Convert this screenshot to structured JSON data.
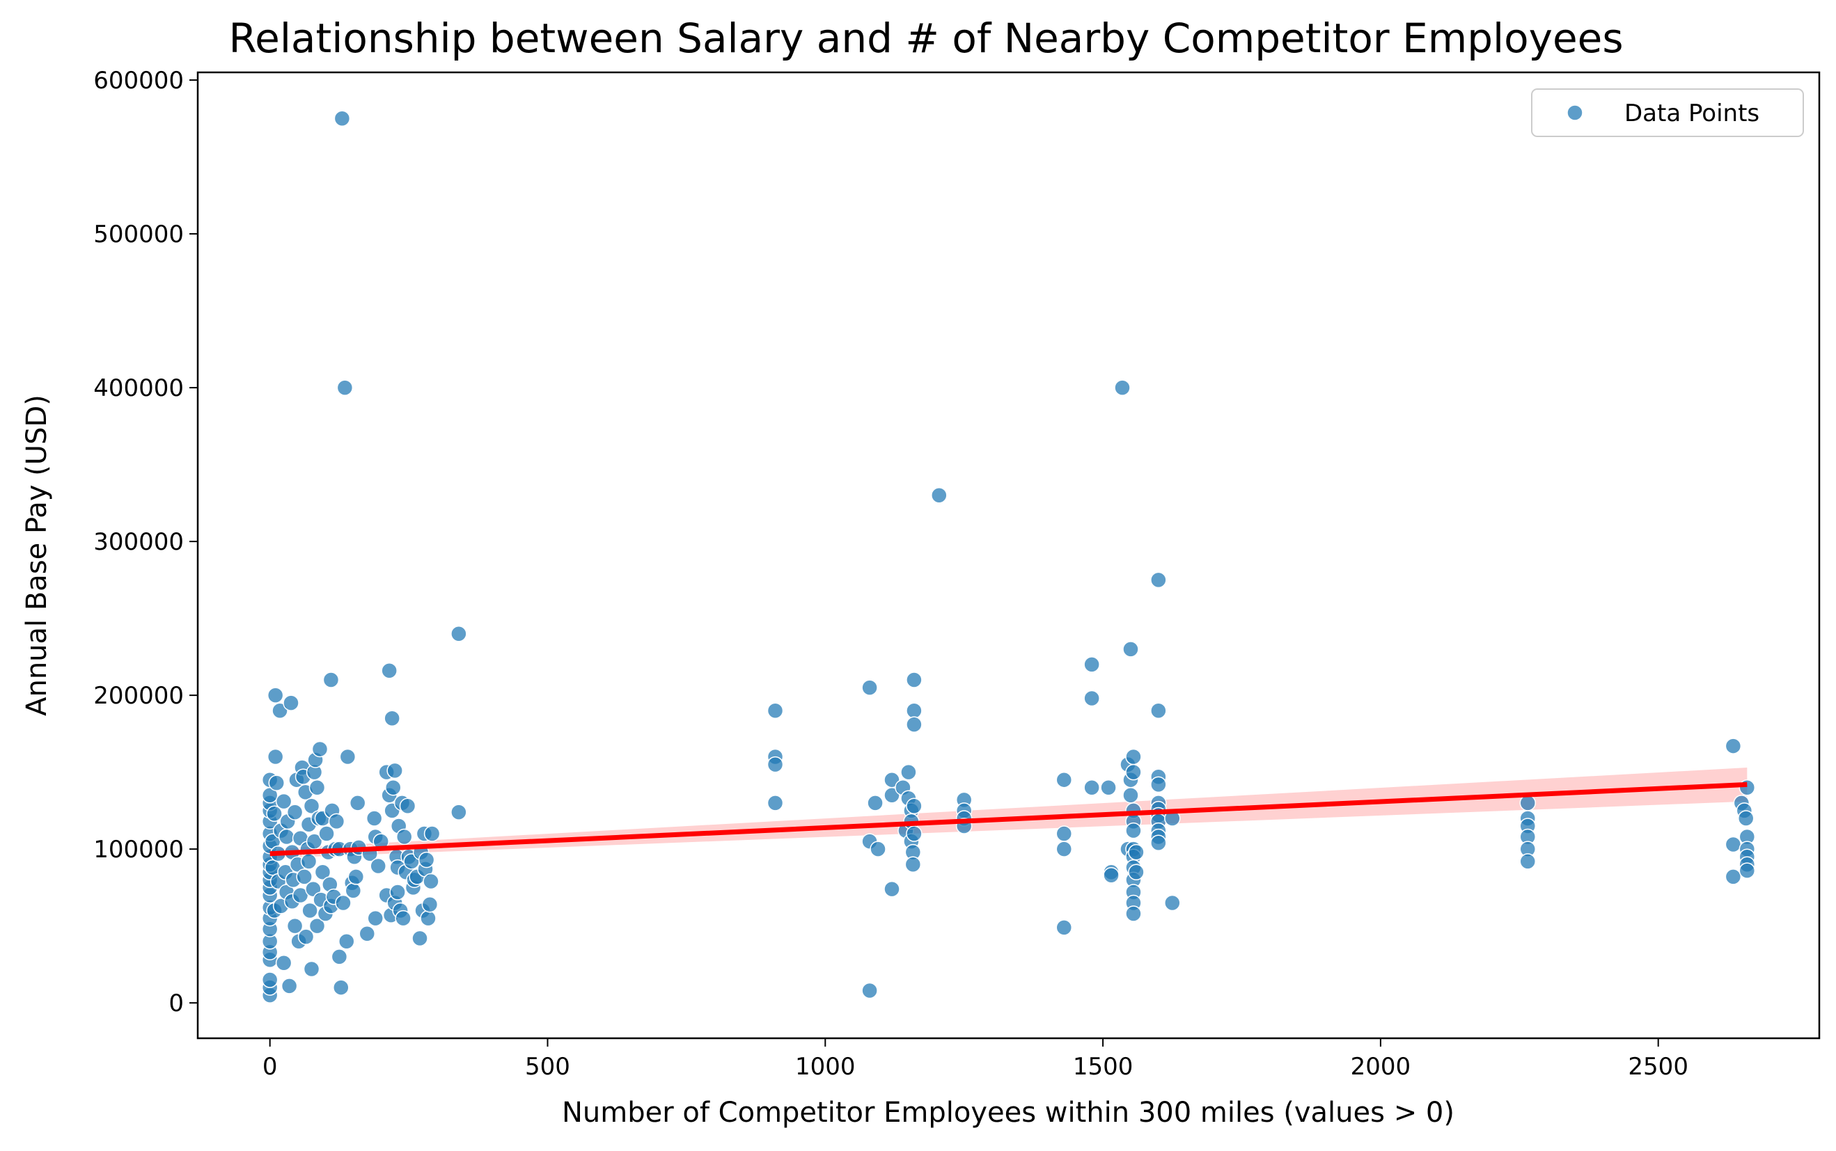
{
  "chart_data": {
    "type": "scatter",
    "title": "Relationship between Salary and # of Nearby Competitor Employees",
    "xlabel": "Number of Competitor Employees within 300 miles (values > 0)",
    "ylabel": "Annual Base Pay (USD)",
    "xlim": [
      -130,
      2790
    ],
    "ylim": [
      -23000,
      605000
    ],
    "x_ticks": [
      0,
      500,
      1000,
      1500,
      2000,
      2500
    ],
    "y_ticks": [
      0,
      100000,
      200000,
      300000,
      400000,
      500000,
      600000
    ],
    "x_tick_labels": [
      "0",
      "500",
      "1000",
      "1500",
      "2000",
      "2500"
    ],
    "y_tick_labels": [
      "0",
      "100000",
      "200000",
      "300000",
      "400000",
      "500000",
      "600000"
    ],
    "grid": false,
    "legend": {
      "placement": "top-right",
      "entries": [
        "Data Points"
      ]
    },
    "colors": {
      "points": "#1f77b4",
      "regression": "#ff0000",
      "ci_band": "#ffb3b3"
    },
    "series": [
      {
        "name": "Data Points",
        "points": [
          [
            0,
            5000
          ],
          [
            0,
            10000
          ],
          [
            0,
            15000
          ],
          [
            0,
            28000
          ],
          [
            0,
            33000
          ],
          [
            0,
            40000
          ],
          [
            0,
            48000
          ],
          [
            0,
            55000
          ],
          [
            0,
            62000
          ],
          [
            0,
            70000
          ],
          [
            0,
            75000
          ],
          [
            0,
            80000
          ],
          [
            0,
            85000
          ],
          [
            0,
            90000
          ],
          [
            0,
            95000
          ],
          [
            0,
            102000
          ],
          [
            0,
            110000
          ],
          [
            0,
            118000
          ],
          [
            0,
            125000
          ],
          [
            0,
            130000
          ],
          [
            0,
            135000
          ],
          [
            0,
            145000
          ],
          [
            5,
            105000
          ],
          [
            5,
            88000
          ],
          [
            8,
            60000
          ],
          [
            8,
            123000
          ],
          [
            10,
            160000
          ],
          [
            10,
            200000
          ],
          [
            12,
            143000
          ],
          [
            15,
            97000
          ],
          [
            15,
            79000
          ],
          [
            18,
            190000
          ],
          [
            20,
            63000
          ],
          [
            20,
            112000
          ],
          [
            25,
            131000
          ],
          [
            25,
            26000
          ],
          [
            28,
            85000
          ],
          [
            30,
            108000
          ],
          [
            30,
            72000
          ],
          [
            32,
            118000
          ],
          [
            35,
            11000
          ],
          [
            38,
            195000
          ],
          [
            40,
            66000
          ],
          [
            40,
            98000
          ],
          [
            42,
            80000
          ],
          [
            45,
            50000
          ],
          [
            45,
            124000
          ],
          [
            48,
            145000
          ],
          [
            50,
            90000
          ],
          [
            52,
            40000
          ],
          [
            55,
            70000
          ],
          [
            55,
            107000
          ],
          [
            58,
            153000
          ],
          [
            60,
            147000
          ],
          [
            62,
            82000
          ],
          [
            64,
            137000
          ],
          [
            65,
            43000
          ],
          [
            68,
            100000
          ],
          [
            70,
            116000
          ],
          [
            70,
            92000
          ],
          [
            72,
            60000
          ],
          [
            75,
            22000
          ],
          [
            75,
            128000
          ],
          [
            78,
            74000
          ],
          [
            80,
            105000
          ],
          [
            80,
            150000
          ],
          [
            82,
            158000
          ],
          [
            85,
            140000
          ],
          [
            85,
            50000
          ],
          [
            88,
            120000
          ],
          [
            90,
            165000
          ],
          [
            92,
            67000
          ],
          [
            95,
            85000
          ],
          [
            95,
            120000
          ],
          [
            100,
            58000
          ],
          [
            102,
            110000
          ],
          [
            105,
            98000
          ],
          [
            108,
            77000
          ],
          [
            110,
            63000
          ],
          [
            110,
            210000
          ],
          [
            112,
            125000
          ],
          [
            115,
            69000
          ],
          [
            118,
            100000
          ],
          [
            120,
            118000
          ],
          [
            125,
            100000
          ],
          [
            125,
            30000
          ],
          [
            128,
            10000
          ],
          [
            130,
            575000
          ],
          [
            132,
            65000
          ],
          [
            135,
            400000
          ],
          [
            138,
            40000
          ],
          [
            140,
            160000
          ],
          [
            145,
            100000
          ],
          [
            148,
            78000
          ],
          [
            150,
            73000
          ],
          [
            152,
            95000
          ],
          [
            155,
            82000
          ],
          [
            158,
            130000
          ],
          [
            160,
            101000
          ],
          [
            175,
            45000
          ],
          [
            180,
            97000
          ],
          [
            188,
            120000
          ],
          [
            190,
            108000
          ],
          [
            190,
            55000
          ],
          [
            195,
            89000
          ],
          [
            200,
            105000
          ],
          [
            210,
            70000
          ],
          [
            210,
            150000
          ],
          [
            215,
            135000
          ],
          [
            215,
            216000
          ],
          [
            218,
            57000
          ],
          [
            220,
            185000
          ],
          [
            220,
            125000
          ],
          [
            222,
            140000
          ],
          [
            225,
            151000
          ],
          [
            225,
            65000
          ],
          [
            228,
            95000
          ],
          [
            230,
            88000
          ],
          [
            230,
            72000
          ],
          [
            232,
            115000
          ],
          [
            235,
            60000
          ],
          [
            238,
            130000
          ],
          [
            240,
            55000
          ],
          [
            242,
            108000
          ],
          [
            245,
            85000
          ],
          [
            248,
            128000
          ],
          [
            250,
            95000
          ],
          [
            255,
            92000
          ],
          [
            258,
            75000
          ],
          [
            260,
            80000
          ],
          [
            265,
            82000
          ],
          [
            270,
            42000
          ],
          [
            272,
            98000
          ],
          [
            275,
            60000
          ],
          [
            278,
            110000
          ],
          [
            280,
            87000
          ],
          [
            282,
            93000
          ],
          [
            285,
            55000
          ],
          [
            288,
            64000
          ],
          [
            290,
            79000
          ],
          [
            292,
            110000
          ],
          [
            340,
            124000
          ],
          [
            340,
            240000
          ],
          [
            910,
            190000
          ],
          [
            910,
            160000
          ],
          [
            910,
            155000
          ],
          [
            910,
            130000
          ],
          [
            1080,
            205000
          ],
          [
            1080,
            105000
          ],
          [
            1080,
            8000
          ],
          [
            1090,
            130000
          ],
          [
            1095,
            100000
          ],
          [
            1120,
            145000
          ],
          [
            1120,
            135000
          ],
          [
            1120,
            74000
          ],
          [
            1140,
            140000
          ],
          [
            1145,
            112000
          ],
          [
            1150,
            150000
          ],
          [
            1150,
            133000
          ],
          [
            1155,
            125000
          ],
          [
            1155,
            118000
          ],
          [
            1155,
            105000
          ],
          [
            1158,
            98000
          ],
          [
            1158,
            90000
          ],
          [
            1160,
            210000
          ],
          [
            1160,
            190000
          ],
          [
            1160,
            181000
          ],
          [
            1160,
            128000
          ],
          [
            1160,
            110000
          ],
          [
            1205,
            330000
          ],
          [
            1250,
            132000
          ],
          [
            1250,
            125000
          ],
          [
            1250,
            120000
          ],
          [
            1250,
            115000
          ],
          [
            1430,
            145000
          ],
          [
            1430,
            110000
          ],
          [
            1430,
            100000
          ],
          [
            1430,
            49000
          ],
          [
            1480,
            220000
          ],
          [
            1480,
            198000
          ],
          [
            1480,
            140000
          ],
          [
            1510,
            140000
          ],
          [
            1515,
            85000
          ],
          [
            1515,
            83000
          ],
          [
            1535,
            400000
          ],
          [
            1545,
            155000
          ],
          [
            1545,
            100000
          ],
          [
            1550,
            230000
          ],
          [
            1550,
            145000
          ],
          [
            1550,
            135000
          ],
          [
            1555,
            160000
          ],
          [
            1555,
            150000
          ],
          [
            1555,
            125000
          ],
          [
            1555,
            118000
          ],
          [
            1555,
            112000
          ],
          [
            1555,
            100000
          ],
          [
            1555,
            95000
          ],
          [
            1555,
            88000
          ],
          [
            1555,
            80000
          ],
          [
            1555,
            72000
          ],
          [
            1555,
            65000
          ],
          [
            1555,
            58000
          ],
          [
            1560,
            98000
          ],
          [
            1560,
            85000
          ],
          [
            1600,
            275000
          ],
          [
            1600,
            190000
          ],
          [
            1600,
            147000
          ],
          [
            1600,
            142000
          ],
          [
            1600,
            130000
          ],
          [
            1600,
            126000
          ],
          [
            1600,
            122000
          ],
          [
            1600,
            118000
          ],
          [
            1600,
            112000
          ],
          [
            1600,
            108000
          ],
          [
            1600,
            104000
          ],
          [
            1625,
            120000
          ],
          [
            1625,
            65000
          ],
          [
            2265,
            130000
          ],
          [
            2265,
            120000
          ],
          [
            2265,
            115000
          ],
          [
            2265,
            108000
          ],
          [
            2265,
            100000
          ],
          [
            2265,
            92000
          ],
          [
            2635,
            167000
          ],
          [
            2635,
            103000
          ],
          [
            2635,
            82000
          ],
          [
            2650,
            130000
          ],
          [
            2655,
            125000
          ],
          [
            2658,
            120000
          ],
          [
            2660,
            140000
          ],
          [
            2660,
            108000
          ],
          [
            2660,
            100000
          ],
          [
            2660,
            95000
          ],
          [
            2660,
            90000
          ],
          [
            2660,
            86000
          ]
        ]
      }
    ],
    "regression": {
      "x": [
        0,
        2660
      ],
      "y": [
        97000,
        142000
      ],
      "ci_lower": [
        94000,
        131000
      ],
      "ci_upper": [
        100000,
        153000
      ]
    }
  }
}
